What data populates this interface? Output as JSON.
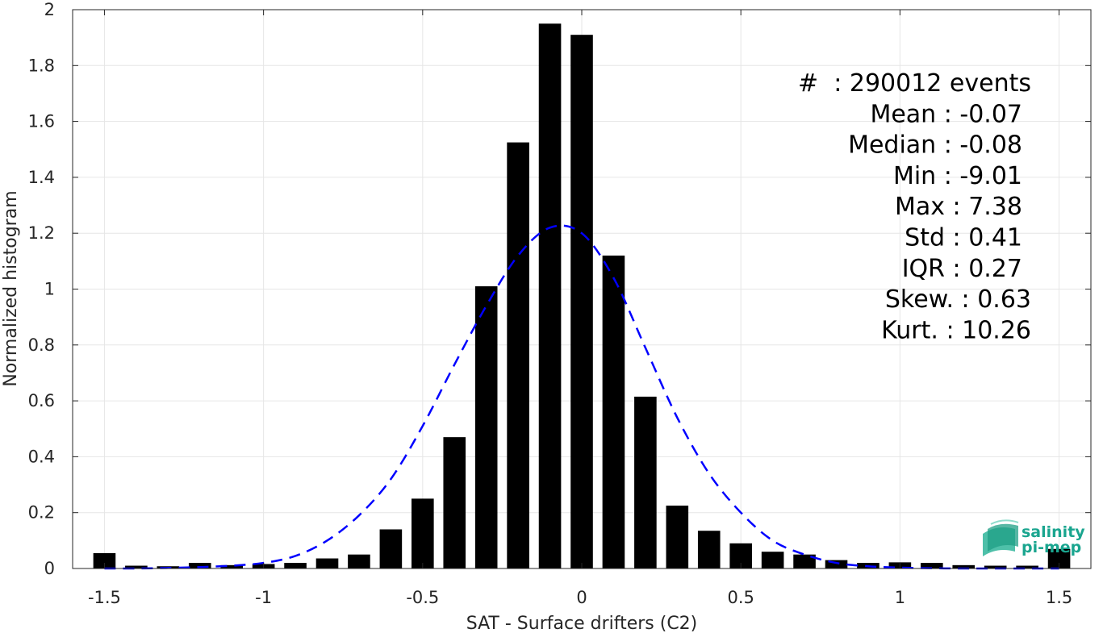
{
  "chart_data": {
    "type": "bar",
    "xlabel": "SAT - Surface drifters (C2)",
    "ylabel": "Normalized histogram",
    "xlim": [
      -1.6,
      1.6
    ],
    "ylim": [
      0,
      2
    ],
    "grid": true,
    "xticks": [
      -1.5,
      -1,
      -0.5,
      0,
      0.5,
      1,
      1.5
    ],
    "xtick_labels": [
      "-1.5",
      "-1",
      "-0.5",
      "0",
      "0.5",
      "1",
      "1.5"
    ],
    "yticks": [
      0,
      0.2,
      0.4,
      0.6,
      0.8,
      1,
      1.2,
      1.4,
      1.6,
      1.8,
      2
    ],
    "ytick_labels": [
      "0",
      "0.2",
      "0.4",
      "0.6",
      "0.8",
      "1",
      "1.2",
      "1.4",
      "1.6",
      "1.8",
      "2"
    ],
    "bar_width": 0.07,
    "bar_color": "#000000",
    "bars": {
      "x": [
        -1.5,
        -1.4,
        -1.3,
        -1.2,
        -1.1,
        -1.0,
        -0.9,
        -0.8,
        -0.7,
        -0.6,
        -0.5,
        -0.4,
        -0.3,
        -0.2,
        -0.1,
        0.0,
        0.1,
        0.2,
        0.3,
        0.4,
        0.5,
        0.6,
        0.7,
        0.8,
        0.9,
        1.0,
        1.1,
        1.2,
        1.3,
        1.4,
        1.5
      ],
      "y": [
        0.055,
        0.01,
        0.008,
        0.02,
        0.012,
        0.016,
        0.02,
        0.036,
        0.05,
        0.14,
        0.25,
        0.47,
        1.01,
        1.525,
        1.95,
        1.91,
        1.12,
        0.615,
        0.225,
        0.135,
        0.09,
        0.06,
        0.05,
        0.03,
        0.02,
        0.022,
        0.02,
        0.012,
        0.01,
        0.01,
        0.07
      ]
    },
    "fit_line": {
      "style": "dashed",
      "color": "#0000ff",
      "x": [
        -1.5,
        -1.4,
        -1.3,
        -1.2,
        -1.1,
        -1.0,
        -0.9,
        -0.8,
        -0.7,
        -0.6,
        -0.5,
        -0.4,
        -0.3,
        -0.2,
        -0.1,
        0.0,
        0.1,
        0.2,
        0.3,
        0.4,
        0.5,
        0.6,
        0.7,
        0.8,
        0.9,
        1.0,
        1.1,
        1.2,
        1.3,
        1.4,
        1.5
      ],
      "y": [
        0.0,
        0.0,
        0.002,
        0.005,
        0.01,
        0.02,
        0.045,
        0.1,
        0.19,
        0.32,
        0.51,
        0.73,
        0.94,
        1.12,
        1.22,
        1.2,
        1.04,
        0.79,
        0.54,
        0.34,
        0.2,
        0.1,
        0.05,
        0.02,
        0.008,
        0.003,
        0.001,
        0.0,
        0.0,
        0.0,
        0.0
      ]
    },
    "annotations": [
      "#  : 290012 events",
      "Mean : -0.07",
      "Median : -0.08",
      "Min : -9.01",
      "Max : 7.38",
      "Std : 0.41",
      "IQR : 0.27",
      "Skew. : 0.63",
      "Kurt. : 10.26"
    ]
  },
  "logo": {
    "line1": "salinity",
    "line2": "pi-mep"
  }
}
